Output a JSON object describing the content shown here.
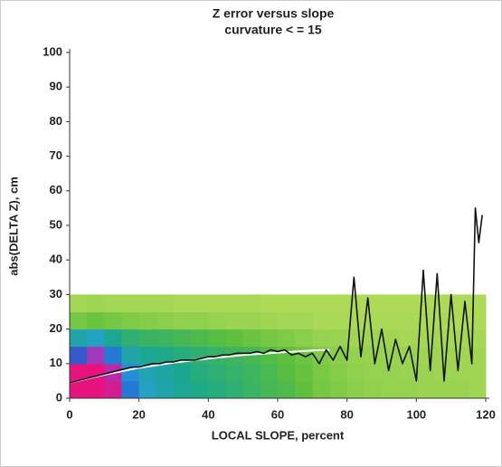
{
  "chart_data": {
    "type": "line",
    "title": "Z error versus slope",
    "subtitle": "curvature < = 15",
    "xlabel": "LOCAL SLOPE, percent",
    "ylabel": "abs(DELTA Z), cm",
    "xlim": [
      0,
      120
    ],
    "ylim": [
      0,
      100
    ],
    "xticks": [
      0,
      20,
      40,
      60,
      80,
      100,
      120
    ],
    "yticks": [
      0,
      10,
      20,
      30,
      40,
      50,
      60,
      70,
      80,
      90,
      100
    ],
    "grid": false,
    "density": {
      "x_bins": [
        0,
        5,
        10,
        15,
        20,
        25,
        30,
        35,
        40,
        45,
        50,
        55,
        60,
        65,
        70,
        75,
        80,
        85,
        90,
        95,
        100,
        105,
        110,
        115,
        120
      ],
      "y_bins": [
        0,
        5,
        10,
        15,
        20,
        25,
        30
      ],
      "colormap": [
        "#b4dc5a",
        "#5cbf3c",
        "#1aa78c",
        "#2aa0d8",
        "#2060d0",
        "#9a3cc0",
        "#e8127f"
      ],
      "values": [
        [
          100,
          100,
          95,
          60,
          45,
          40,
          35,
          32,
          30,
          28,
          25,
          22,
          20,
          16,
          12,
          10,
          8,
          7,
          6,
          6,
          5,
          5,
          5,
          4
        ],
        [
          100,
          100,
          90,
          55,
          42,
          38,
          34,
          30,
          28,
          26,
          24,
          21,
          18,
          15,
          11,
          9,
          7,
          6,
          6,
          5,
          5,
          4,
          4,
          4
        ],
        [
          70,
          85,
          60,
          40,
          35,
          32,
          30,
          28,
          26,
          24,
          22,
          19,
          16,
          13,
          10,
          8,
          6,
          6,
          5,
          5,
          4,
          4,
          4,
          4
        ],
        [
          40,
          45,
          35,
          28,
          25,
          24,
          22,
          20,
          18,
          16,
          14,
          12,
          10,
          8,
          6,
          5,
          4,
          4,
          4,
          3,
          3,
          3,
          3,
          3
        ],
        [
          12,
          14,
          12,
          10,
          9,
          8,
          7,
          7,
          6,
          5,
          5,
          4,
          3,
          3,
          2,
          2,
          2,
          2,
          2,
          2,
          2,
          2,
          1,
          1
        ],
        [
          3,
          4,
          3,
          3,
          3,
          3,
          2,
          2,
          2,
          2,
          2,
          1,
          1,
          1,
          1,
          1,
          1,
          1,
          1,
          1,
          1,
          1,
          1,
          1
        ]
      ]
    },
    "series": [
      {
        "color": "#ffffff",
        "x": [
          0,
          10,
          20,
          30,
          40,
          50,
          60,
          70,
          75
        ],
        "values": [
          4.5,
          6.8,
          8.8,
          10.3,
          11.5,
          12.5,
          13.2,
          13.8,
          14
        ]
      },
      {
        "color": "#111111",
        "x": [
          0,
          2,
          4,
          6,
          8,
          10,
          12,
          14,
          16,
          18,
          20,
          22,
          24,
          26,
          28,
          30,
          32,
          34,
          36,
          38,
          40,
          42,
          44,
          46,
          48,
          50,
          52,
          54,
          56,
          58,
          60,
          62,
          64,
          66,
          68,
          70,
          72,
          74,
          76,
          78,
          80,
          82,
          84,
          86,
          88,
          90,
          92,
          94,
          96,
          98,
          100,
          102,
          104,
          106,
          108,
          110,
          112,
          114,
          116,
          117,
          118,
          119
        ],
        "values": [
          4.5,
          5,
          5.5,
          6,
          6.5,
          7,
          7.5,
          8,
          8.5,
          9,
          9,
          9.5,
          10,
          10,
          10.5,
          10.5,
          11,
          11,
          11,
          11.5,
          12,
          12,
          12.5,
          12.5,
          13,
          13,
          13,
          13.5,
          13,
          14,
          13.5,
          14,
          12.5,
          13,
          12,
          13,
          10,
          14,
          11,
          15,
          11,
          35,
          12,
          29,
          10,
          20,
          8,
          17,
          10,
          15,
          5,
          37,
          8,
          36,
          5,
          30,
          8,
          28,
          10,
          55,
          45,
          53
        ]
      }
    ]
  }
}
